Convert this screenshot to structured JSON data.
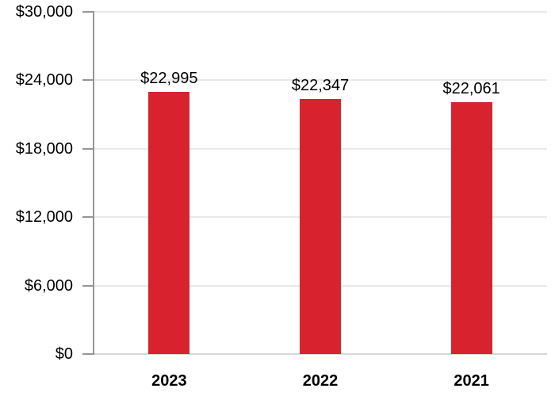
{
  "chart_data": {
    "type": "bar",
    "title": "",
    "xlabel": "",
    "ylabel": "",
    "categories": [
      "2023",
      "2022",
      "2021"
    ],
    "values": [
      22995,
      22347,
      22061
    ],
    "value_labels": [
      "$22,995",
      "$22,347",
      "$22,061"
    ],
    "y_ticks": [
      0,
      6000,
      12000,
      18000,
      24000,
      30000
    ],
    "y_tick_labels": [
      "$0",
      "$6,000",
      "$12,000",
      "$18,000",
      "$24,000",
      "$30,000"
    ],
    "ylim": [
      0,
      30000
    ],
    "grid": true,
    "legend": false,
    "colors": {
      "bar": "#D8232F",
      "axis": "#969696",
      "gridline": "#E9E9E9",
      "baseline": "#D6D6D6",
      "text": "#000000",
      "background": "#FFFFFF"
    }
  }
}
